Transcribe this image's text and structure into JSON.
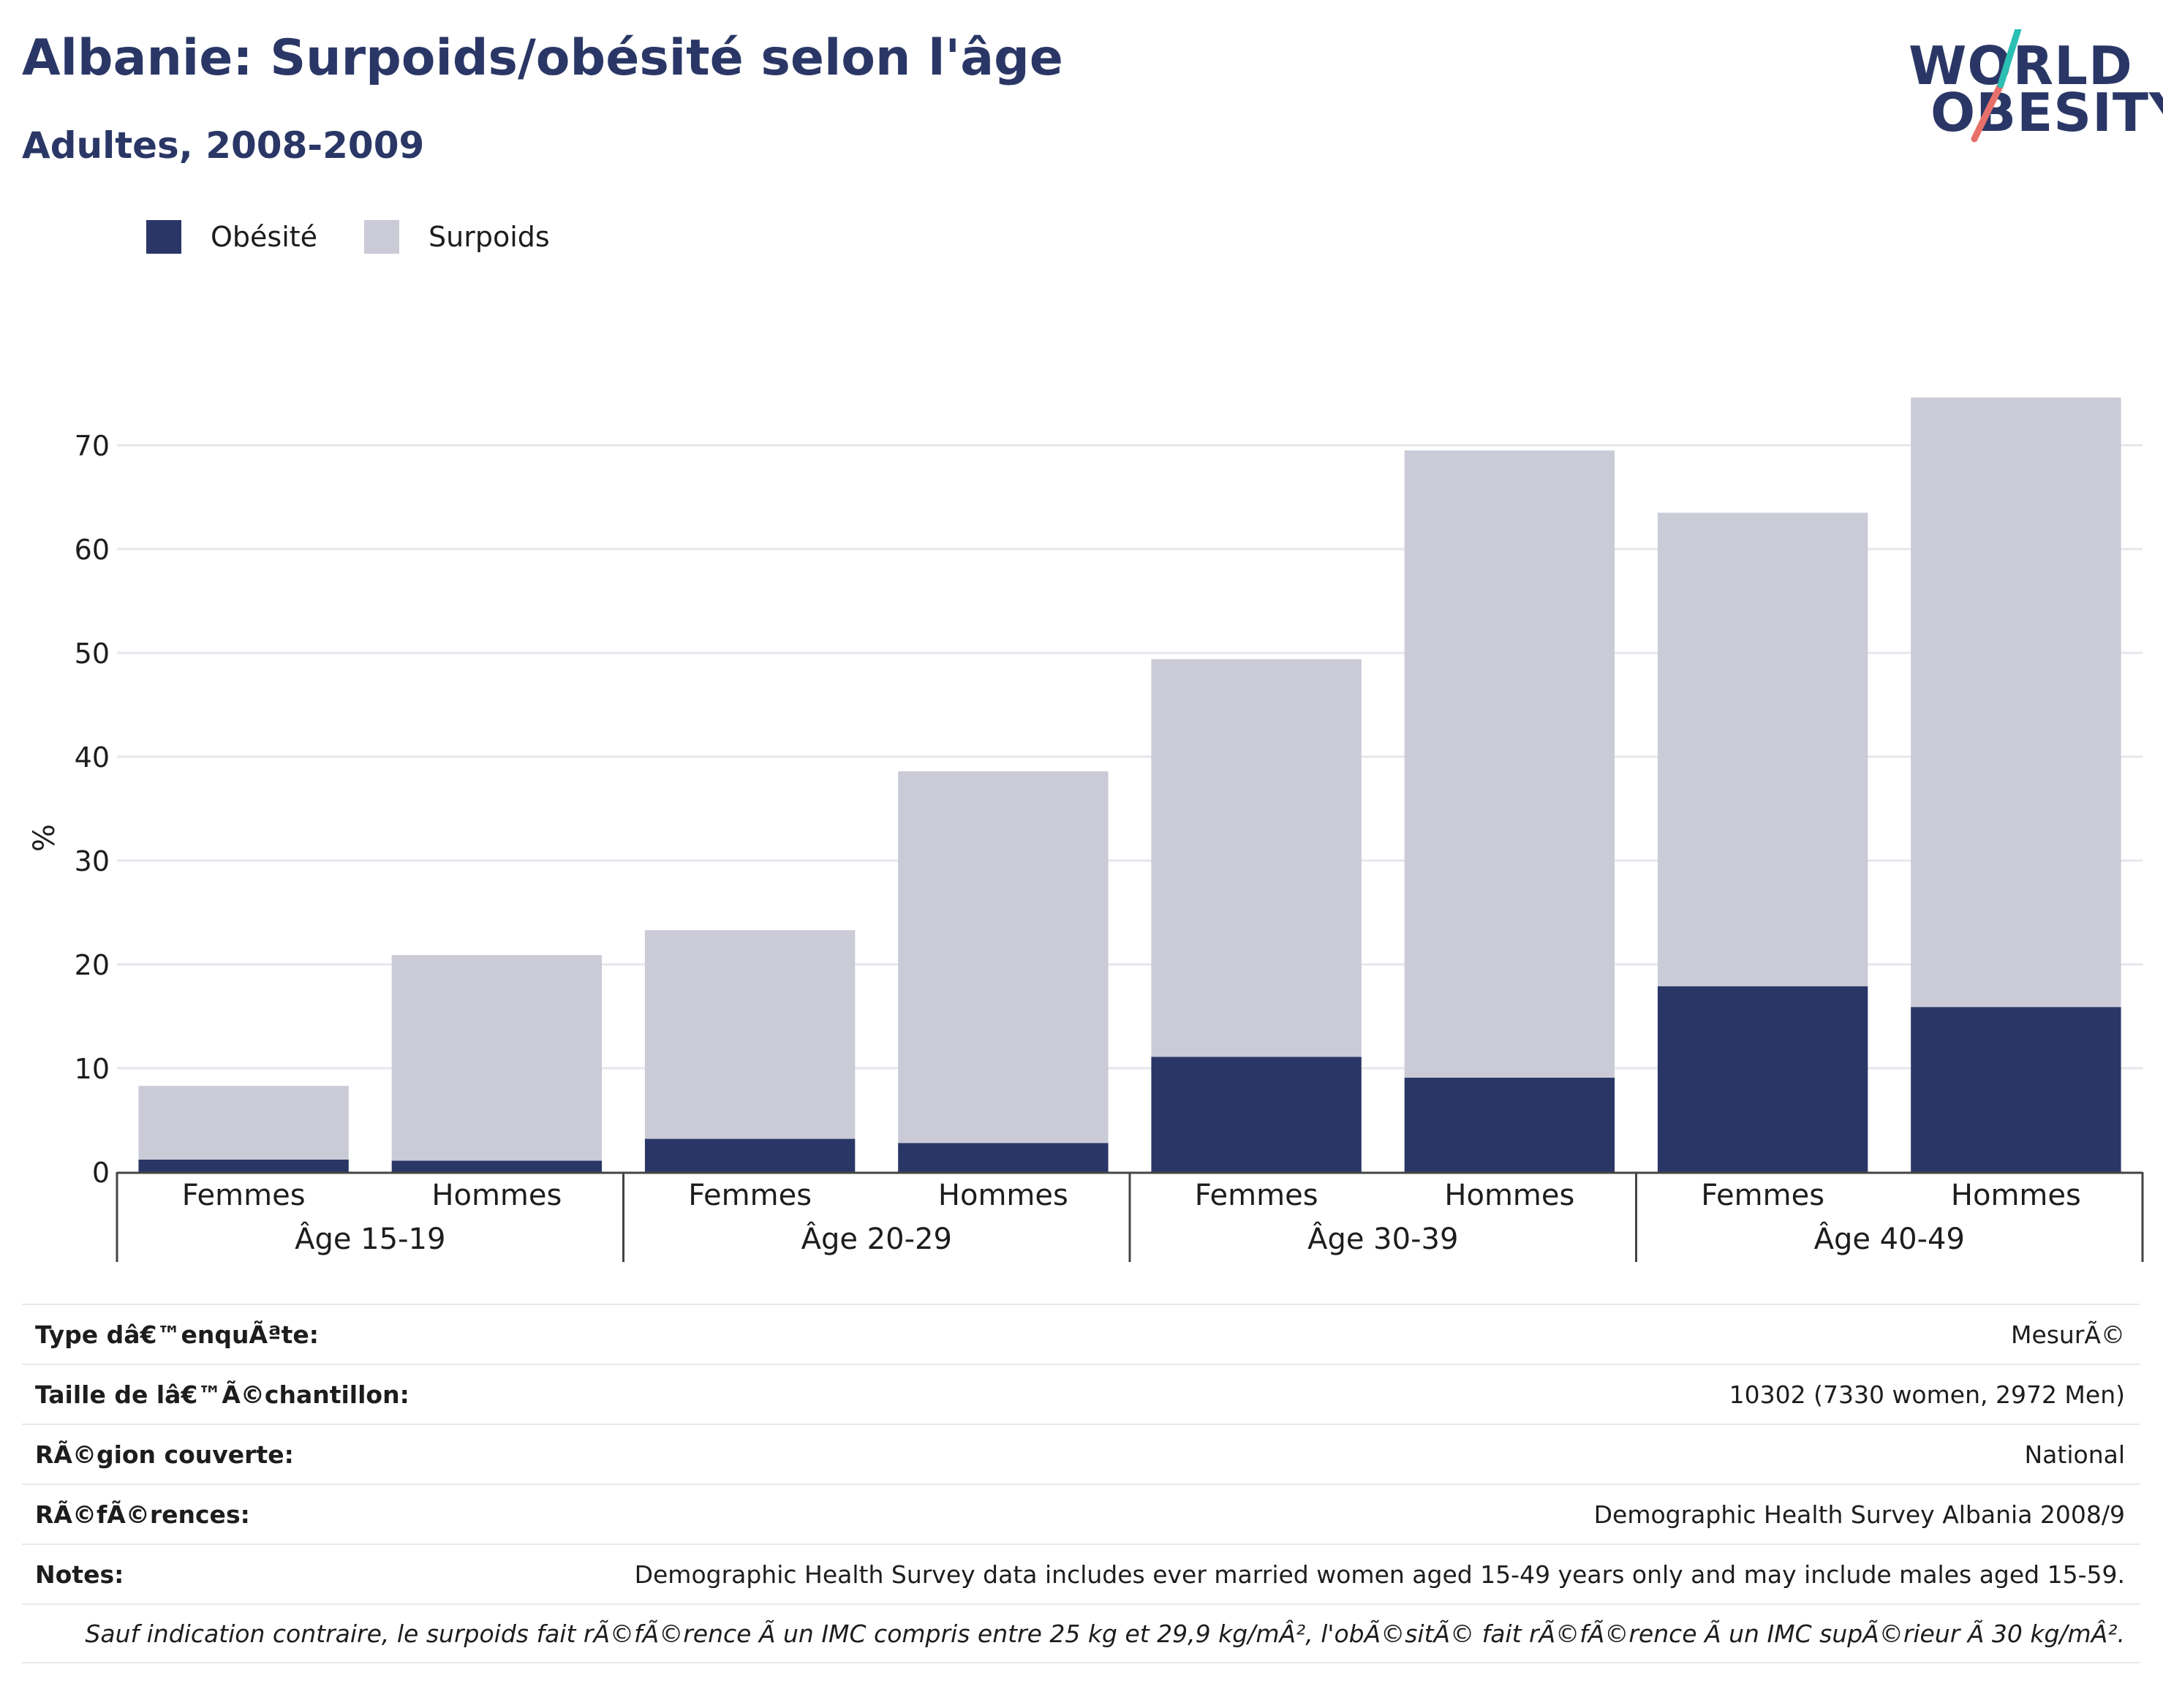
{
  "title": "Albanie: Surpoids/obésité selon l'âge",
  "subtitle": "Adultes, 2008-2009",
  "logo": {
    "line1": "WORLD",
    "line2": "OBESITY"
  },
  "colors": {
    "obesite": "#2a3766",
    "surpoids": "#cacbd7",
    "title": "#2a3766",
    "grid": "#e6e6ec",
    "logo_teal": "#2bbfb3",
    "logo_coral": "#e8706a"
  },
  "chart_data": {
    "type": "bar",
    "stacked": true,
    "ylabel": "%",
    "ylim": [
      0,
      75
    ],
    "yticks": [
      0,
      10,
      20,
      30,
      40,
      50,
      60,
      70
    ],
    "grid": true,
    "legend_position": "top-left",
    "categories": [
      "Femmes",
      "Hommes",
      "Femmes",
      "Hommes",
      "Femmes",
      "Hommes",
      "Femmes",
      "Hommes"
    ],
    "groups": [
      {
        "label": "Âge 15-19",
        "span": 2
      },
      {
        "label": "Âge 20-29",
        "span": 2
      },
      {
        "label": "Âge 30-39",
        "span": 2
      },
      {
        "label": "Âge 40-49",
        "span": 2
      }
    ],
    "series": [
      {
        "name": "Obésité",
        "color": "#2a3766",
        "values": [
          1.2,
          1.1,
          3.2,
          2.8,
          11.1,
          9.1,
          17.9,
          15.9
        ]
      },
      {
        "name": "Surpoids",
        "color": "#cacbd7",
        "values": [
          7.1,
          19.8,
          20.1,
          35.8,
          38.3,
          60.4,
          45.6,
          58.7
        ]
      }
    ]
  },
  "meta": [
    {
      "label": "Type dâ€™enquÃªte:",
      "value": "MesurÃ©"
    },
    {
      "label": "Taille de lâ€™Ã©chantillon:",
      "value": "10302 (7330 women, 2972 Men)"
    },
    {
      "label": "RÃ©gion couverte:",
      "value": "National"
    },
    {
      "label": "RÃ©fÃ©rences:",
      "value": "Demographic Health Survey Albania 2008/9"
    },
    {
      "label": "Notes:",
      "value": "Demographic Health Survey data includes ever married women aged 15-49 years only and may include males aged 15-59."
    }
  ],
  "footnote": "Sauf indication contraire, le surpoids fait rÃ©fÃ©rence Ã  un IMC compris entre 25 kg et 29,9 kg/mÂ², l'obÃ©sitÃ© fait rÃ©fÃ©rence Ã  un IMC supÃ©rieur Ã  30 kg/mÂ²."
}
